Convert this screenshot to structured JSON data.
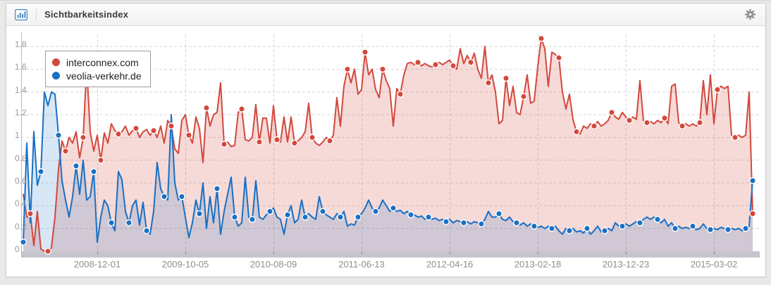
{
  "header": {
    "title": "Sichtbarkeitsindex",
    "icons": {
      "left": "bar-chart-icon",
      "right": "gear-icon"
    }
  },
  "colors": {
    "red_line": "#d3483c",
    "red_fill": "rgba(211,72,60,0.20)",
    "blue_line": "#1a70c4",
    "blue_fill": "rgba(26,112,196,0.17)",
    "grid": "#d6d6d6",
    "axis_line": "#b9b9b9",
    "axis_band": "#c6c5ce",
    "axis_tick": "#8f8f99",
    "icon_blue": "#4a87c6",
    "gear_gray": "#8d8d8d"
  },
  "chart_data": {
    "type": "area",
    "title": "Sichtbarkeitsindex",
    "ylim": [
      0,
      1.8
    ],
    "ytick_step": 0.2,
    "yticks": [
      "0",
      "0.2",
      "0.4",
      "0.6",
      "0.8",
      "1",
      "1.2",
      "1.4",
      "1.6",
      "1.8"
    ],
    "x_tick_labels": [
      "2008-12-01",
      "2009-10-05",
      "2010-08-09",
      "2011-06-13",
      "2012-04-16",
      "2013-02-18",
      "2013-12-23",
      "2015-03-02"
    ],
    "grid": "dashed",
    "legend_position": "top-left",
    "series": [
      {
        "name": "interconnex.com",
        "color": "#d3483c",
        "fill": "rgba(211,72,60,0.20)",
        "marker_every": 5,
        "marker_offset": 2,
        "values": [
          0.5,
          0.3,
          0.33,
          0.05,
          0.35,
          0.02,
          0.0,
          0.0,
          0.03,
          0.3,
          0.72,
          0.97,
          0.88,
          1.0,
          0.95,
          1.05,
          0.82,
          1.0,
          1.62,
          1.05,
          0.88,
          1.02,
          0.8,
          1.04,
          0.95,
          1.12,
          1.06,
          1.03,
          1.05,
          1.1,
          1.02,
          1.06,
          1.08,
          1.0,
          1.05,
          1.07,
          1.02,
          1.06,
          1.0,
          1.1,
          0.95,
          1.15,
          1.1,
          0.9,
          0.86,
          1.15,
          1.2,
          1.02,
          0.95,
          1.18,
          1.08,
          0.78,
          1.26,
          1.1,
          1.2,
          1.22,
          1.48,
          0.94,
          0.96,
          0.92,
          0.93,
          1.22,
          1.25,
          0.98,
          0.97,
          1.0,
          1.29,
          0.96,
          1.17,
          1.17,
          0.95,
          1.28,
          0.98,
          0.96,
          1.18,
          0.96,
          1.18,
          0.95,
          0.97,
          1.0,
          1.05,
          1.3,
          1.0,
          0.95,
          0.93,
          0.96,
          1.0,
          0.97,
          1.02,
          1.35,
          1.1,
          1.45,
          1.6,
          1.48,
          1.6,
          1.38,
          1.42,
          1.75,
          1.55,
          1.6,
          1.42,
          1.35,
          1.6,
          1.5,
          1.43,
          1.1,
          1.43,
          1.38,
          1.55,
          1.65,
          1.66,
          1.64,
          1.66,
          1.63,
          1.65,
          1.63,
          1.62,
          1.64,
          1.66,
          1.64,
          1.66,
          1.68,
          1.63,
          1.6,
          1.78,
          1.65,
          1.72,
          1.66,
          1.74,
          1.6,
          1.52,
          1.8,
          1.48,
          1.55,
          1.4,
          1.12,
          1.15,
          1.52,
          1.28,
          1.45,
          1.22,
          1.2,
          1.36,
          1.55,
          1.3,
          1.32,
          1.62,
          1.87,
          1.78,
          1.45,
          1.75,
          1.73,
          1.7,
          1.4,
          1.25,
          1.38,
          1.16,
          1.05,
          1.03,
          1.1,
          1.08,
          1.12,
          1.1,
          1.14,
          1.1,
          1.12,
          1.15,
          1.22,
          1.18,
          1.16,
          1.22,
          1.18,
          1.15,
          1.18,
          1.16,
          1.5,
          1.15,
          1.13,
          1.14,
          1.12,
          1.15,
          1.13,
          1.17,
          1.12,
          1.45,
          1.47,
          1.13,
          1.1,
          1.12,
          1.1,
          1.12,
          1.1,
          1.13,
          1.5,
          1.2,
          1.55,
          1.12,
          1.42,
          1.45,
          1.43,
          1.45,
          1.02,
          1.0,
          1.02,
          1.0,
          1.02,
          1.4,
          0.33
        ]
      },
      {
        "name": "veolia-verkehr.de",
        "color": "#1a70c4",
        "fill": "rgba(26,112,196,0.17)",
        "marker_every": 5,
        "marker_offset": 0,
        "values": [
          0.08,
          0.95,
          0.25,
          1.05,
          0.58,
          0.7,
          1.4,
          1.28,
          1.4,
          1.38,
          1.02,
          0.62,
          0.45,
          0.3,
          0.48,
          0.75,
          0.5,
          0.8,
          0.45,
          0.48,
          0.7,
          0.08,
          0.3,
          0.45,
          0.4,
          0.25,
          0.18,
          0.7,
          0.63,
          0.35,
          0.25,
          0.4,
          0.45,
          0.23,
          0.43,
          0.18,
          0.15,
          0.35,
          0.78,
          0.55,
          0.48,
          0.45,
          1.2,
          0.6,
          0.45,
          0.48,
          0.3,
          0.12,
          0.25,
          0.45,
          0.33,
          0.6,
          0.2,
          0.48,
          0.25,
          0.55,
          0.15,
          0.35,
          0.5,
          0.65,
          0.3,
          0.22,
          0.25,
          0.65,
          0.3,
          0.28,
          0.62,
          0.3,
          0.28,
          0.32,
          0.35,
          0.38,
          0.3,
          0.28,
          0.15,
          0.32,
          0.4,
          0.25,
          0.28,
          0.45,
          0.3,
          0.33,
          0.3,
          0.28,
          0.48,
          0.35,
          0.32,
          0.3,
          0.28,
          0.33,
          0.3,
          0.35,
          0.22,
          0.24,
          0.23,
          0.3,
          0.33,
          0.38,
          0.45,
          0.38,
          0.35,
          0.38,
          0.45,
          0.4,
          0.35,
          0.38,
          0.35,
          0.36,
          0.33,
          0.35,
          0.32,
          0.32,
          0.3,
          0.31,
          0.28,
          0.3,
          0.28,
          0.29,
          0.27,
          0.28,
          0.26,
          0.28,
          0.25,
          0.27,
          0.26,
          0.25,
          0.26,
          0.24,
          0.26,
          0.25,
          0.24,
          0.28,
          0.35,
          0.3,
          0.3,
          0.33,
          0.28,
          0.27,
          0.3,
          0.26,
          0.25,
          0.23,
          0.25,
          0.22,
          0.24,
          0.22,
          0.21,
          0.22,
          0.2,
          0.22,
          0.2,
          0.22,
          0.18,
          0.15,
          0.2,
          0.18,
          0.2,
          0.17,
          0.18,
          0.16,
          0.2,
          0.15,
          0.18,
          0.22,
          0.17,
          0.18,
          0.2,
          0.18,
          0.25,
          0.22,
          0.22,
          0.24,
          0.22,
          0.24,
          0.26,
          0.25,
          0.28,
          0.3,
          0.28,
          0.3,
          0.28,
          0.25,
          0.28,
          0.22,
          0.25,
          0.2,
          0.22,
          0.2,
          0.21,
          0.2,
          0.22,
          0.19,
          0.2,
          0.24,
          0.2,
          0.19,
          0.2,
          0.19,
          0.21,
          0.2,
          0.19,
          0.2,
          0.19,
          0.2,
          0.18,
          0.2,
          0.22,
          0.62
        ]
      }
    ]
  }
}
